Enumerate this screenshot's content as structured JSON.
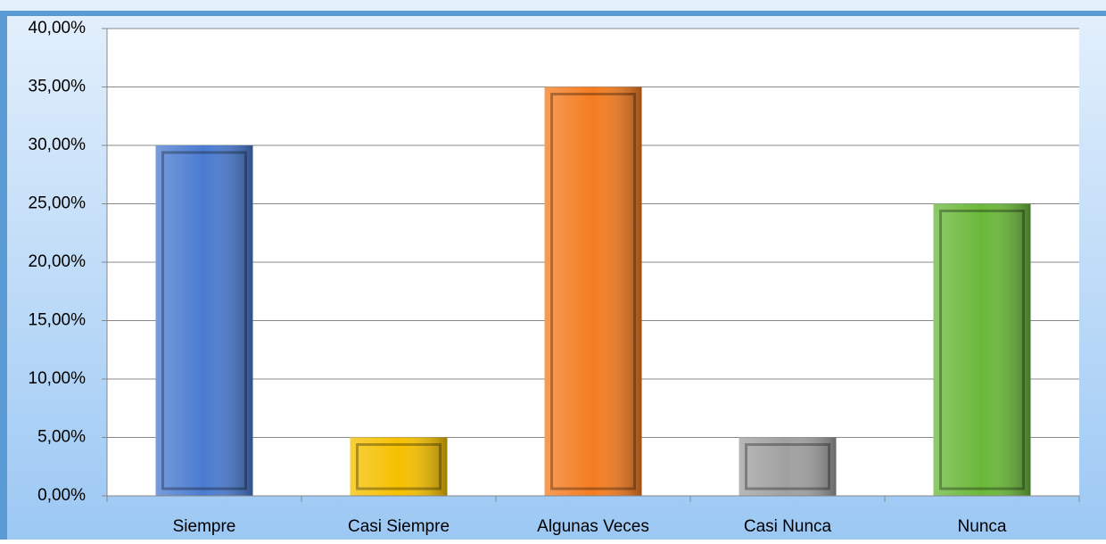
{
  "chart_data": {
    "type": "bar",
    "categories": [
      "Siempre",
      "Casi Siempre",
      "Algunas Veces",
      "Casi Nunca",
      "Nunca"
    ],
    "values": [
      30,
      5,
      35,
      5,
      25
    ],
    "colors": [
      "#4a7bd0",
      "#f5c000",
      "#f47c20",
      "#a0a0a0",
      "#6ab83a"
    ],
    "ylim": [
      0,
      40
    ],
    "yticks": [
      {
        "value": 0,
        "label": "0,00%"
      },
      {
        "value": 5,
        "label": "5,00%"
      },
      {
        "value": 10,
        "label": "10,00%"
      },
      {
        "value": 15,
        "label": "15,00%"
      },
      {
        "value": 20,
        "label": "20,00%"
      },
      {
        "value": 25,
        "label": "25,00%"
      },
      {
        "value": 30,
        "label": "30,00%"
      },
      {
        "value": 35,
        "label": "35,00%"
      },
      {
        "value": 40,
        "label": "40,00%"
      }
    ],
    "grid": true
  }
}
